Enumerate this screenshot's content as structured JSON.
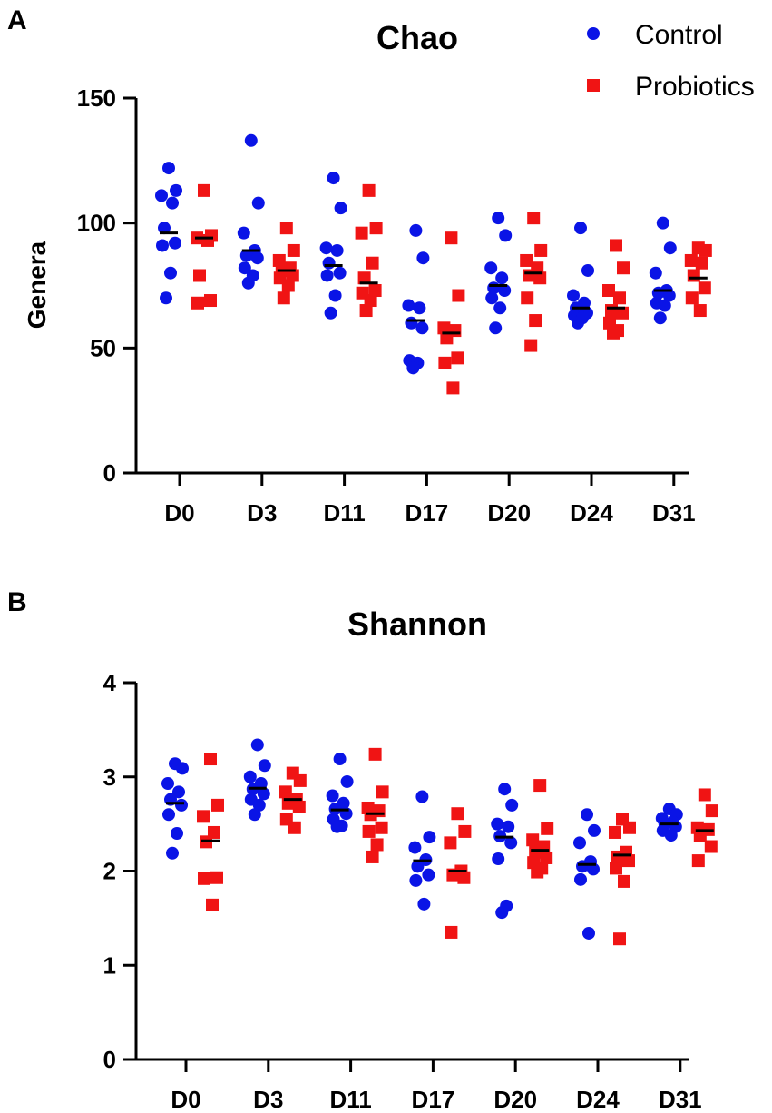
{
  "legend": {
    "control_label": "Control",
    "probiotics_label": "Probiotics",
    "control_color": "#0a14e6",
    "probiotics_color": "#f01414"
  },
  "chart_data": [
    {
      "panel": "A",
      "type": "scatter",
      "title": "Chao",
      "xlabel": "",
      "ylabel": "Genera",
      "ylim": [
        0,
        150
      ],
      "yticks": [
        "0",
        "50",
        "100",
        "150"
      ],
      "categories": [
        "D0",
        "D3",
        "D11",
        "D17",
        "D20",
        "D24",
        "D31"
      ],
      "series": [
        {
          "name": "Control",
          "marker": "circle",
          "means": [
            96,
            89,
            83,
            61,
            75,
            66,
            73
          ],
          "values": [
            [
              122,
              113,
              111,
              108,
              98,
              92,
              91,
              80,
              70
            ],
            [
              133,
              108,
              96,
              89,
              86,
              87,
              82,
              79,
              76
            ],
            [
              118,
              106,
              90,
              89,
              84,
              80,
              79,
              71,
              64
            ],
            [
              97,
              86,
              67,
              66,
              60,
              58,
              45,
              44,
              42
            ],
            [
              102,
              95,
              82,
              78,
              73,
              74,
              70,
              66,
              58
            ],
            [
              98,
              81,
              71,
              68,
              66,
              64,
              63,
              62,
              60
            ],
            [
              100,
              90,
              80,
              73,
              72,
              71,
              68,
              67,
              62
            ]
          ]
        },
        {
          "name": "Probiotics",
          "marker": "square",
          "means": [
            94,
            81,
            76,
            56,
            80,
            66,
            78
          ],
          "values": [
            [
              113,
              95,
              94,
              93,
              79,
              69,
              68
            ],
            [
              98,
              89,
              85,
              82,
              79,
              81,
              78,
              75,
              70
            ],
            [
              113,
              98,
              96,
              84,
              78,
              73,
              69,
              72,
              65
            ],
            [
              94,
              71,
              58,
              57,
              54,
              46,
              44,
              34
            ],
            [
              102,
              89,
              85,
              82,
              79,
              78,
              70,
              61,
              51
            ],
            [
              91,
              82,
              73,
              70,
              64,
              65,
              60,
              57,
              56
            ],
            [
              90,
              89,
              85,
              84,
              79,
              74,
              70,
              65
            ]
          ]
        }
      ]
    },
    {
      "panel": "B",
      "type": "scatter",
      "title": "Shannon",
      "xlabel": "",
      "ylabel": "",
      "ylim": [
        0,
        4
      ],
      "yticks": [
        "0",
        "1",
        "2",
        "3",
        "4"
      ],
      "categories": [
        "D0",
        "D3",
        "D11",
        "D17",
        "D20",
        "D24",
        "D31"
      ],
      "series": [
        {
          "name": "Control",
          "marker": "circle",
          "means": [
            2.72,
            2.88,
            2.65,
            2.11,
            2.36,
            2.07,
            2.5
          ],
          "values": [
            [
              3.14,
              3.09,
              2.93,
              2.84,
              2.76,
              2.7,
              2.6,
              2.4,
              2.19
            ],
            [
              3.34,
              3.12,
              3.0,
              2.93,
              2.87,
              2.82,
              2.76,
              2.7,
              2.6
            ],
            [
              3.19,
              2.95,
              2.8,
              2.72,
              2.66,
              2.61,
              2.55,
              2.48,
              2.47
            ],
            [
              2.79,
              2.36,
              2.25,
              2.12,
              2.05,
              1.96,
              1.9,
              1.65
            ],
            [
              2.87,
              2.7,
              2.5,
              2.47,
              2.37,
              2.3,
              2.13,
              1.63,
              1.56
            ],
            [
              2.6,
              2.43,
              2.3,
              2.1,
              2.05,
              2.02,
              1.91,
              1.34
            ],
            [
              2.66,
              2.6,
              2.56,
              2.52,
              2.5,
              2.47,
              2.43,
              2.38
            ]
          ]
        },
        {
          "name": "Probiotics",
          "marker": "square",
          "means": [
            2.32,
            2.76,
            2.61,
            2.0,
            2.22,
            2.17,
            2.43
          ],
          "values": [
            [
              3.19,
              2.7,
              2.58,
              2.41,
              2.31,
              1.93,
              1.92,
              1.64
            ],
            [
              3.04,
              2.96,
              2.84,
              2.76,
              2.72,
              2.68,
              2.55,
              2.46
            ],
            [
              3.24,
              2.84,
              2.67,
              2.64,
              2.6,
              2.46,
              2.42,
              2.28,
              2.15
            ],
            [
              2.61,
              2.42,
              2.3,
              2.0,
              1.96,
              1.93,
              1.35
            ],
            [
              2.91,
              2.45,
              2.33,
              2.26,
              2.2,
              2.14,
              2.09,
              2.03,
              1.99
            ],
            [
              2.55,
              2.46,
              2.41,
              2.2,
              2.15,
              2.11,
              2.03,
              1.89,
              1.28
            ],
            [
              2.81,
              2.64,
              2.46,
              2.44,
              2.38,
              2.26,
              2.11
            ]
          ]
        }
      ]
    }
  ]
}
